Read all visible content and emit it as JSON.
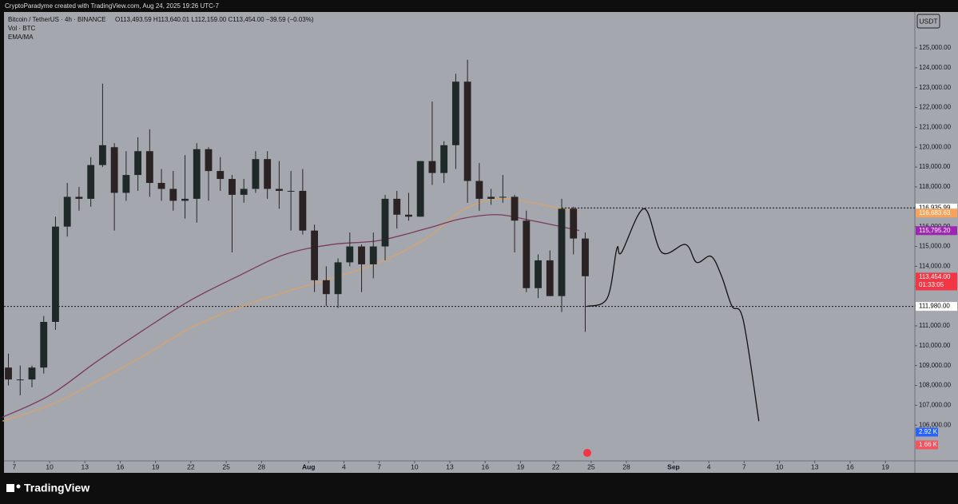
{
  "watermark": "CryptoParadyme created with TradingView.com, Aug 24, 2025 19:26 UTC-7",
  "brand": "TradingView",
  "chart_data": {
    "type": "candlestick",
    "title": "Bitcoin / TetherUS · 4h · BINANCE",
    "ohlc_text": "O113,493.59 H113,640.01 L112,159.00 C113,454.00 −39.59 (−0.03%)",
    "indicators": [
      "Vol · BTC",
      "EMA/MA"
    ],
    "currency": "USDT",
    "up_color": "#1f2a28",
    "down_color": "#2b2224",
    "x": [
      "2025-07-06",
      "2025-07-07",
      "2025-07-08",
      "2025-07-09",
      "2025-07-10",
      "2025-07-11",
      "2025-07-12",
      "2025-07-13",
      "2025-07-14",
      "2025-07-15",
      "2025-07-16",
      "2025-07-17",
      "2025-07-18",
      "2025-07-19",
      "2025-07-20",
      "2025-07-21",
      "2025-07-22",
      "2025-07-23",
      "2025-07-24",
      "2025-07-25",
      "2025-07-26",
      "2025-07-27",
      "2025-07-28",
      "2025-07-29",
      "2025-07-30",
      "2025-07-31",
      "2025-08-01",
      "2025-08-02",
      "2025-08-03",
      "2025-08-04",
      "2025-08-05",
      "2025-08-06",
      "2025-08-07",
      "2025-08-08",
      "2025-08-09",
      "2025-08-10",
      "2025-08-11",
      "2025-08-12",
      "2025-08-13",
      "2025-08-14",
      "2025-08-15",
      "2025-08-16",
      "2025-08-17",
      "2025-08-18",
      "2025-08-19",
      "2025-08-20",
      "2025-08-21",
      "2025-08-22",
      "2025-08-23",
      "2025-08-24"
    ],
    "open": [
      108900,
      108300,
      108300,
      108900,
      111200,
      116000,
      117500,
      117400,
      119100,
      120000,
      117700,
      118600,
      119800,
      118200,
      117900,
      117300,
      117400,
      119900,
      118800,
      118400,
      117600,
      117900,
      119400,
      117900,
      117800,
      117800,
      115800,
      113300,
      112600,
      114200,
      115000,
      114100,
      115000,
      117400,
      116600,
      116500,
      119300,
      118700,
      120100,
      123300,
      118300,
      117400,
      117500,
      117500,
      116300,
      112900,
      114300,
      112500,
      116900,
      115400
    ],
    "high": [
      109600,
      109000,
      109000,
      111500,
      116500,
      118200,
      118000,
      119500,
      123200,
      120200,
      119800,
      120500,
      120900,
      118900,
      118800,
      119600,
      120200,
      120000,
      119500,
      118600,
      118400,
      119800,
      119800,
      119300,
      118800,
      118900,
      116100,
      114000,
      114400,
      115700,
      115100,
      115700,
      117600,
      117800,
      117700,
      119300,
      122300,
      120300,
      123700,
      124400,
      119200,
      117900,
      118600,
      117600,
      116800,
      114600,
      114800,
      117400,
      117000,
      115700
    ],
    "low": [
      108000,
      107500,
      107900,
      108600,
      110800,
      115500,
      116800,
      117000,
      119000,
      115800,
      117300,
      117800,
      117500,
      117300,
      116800,
      116400,
      116200,
      117300,
      117800,
      114700,
      117200,
      117700,
      117400,
      116900,
      115800,
      115600,
      112700,
      112000,
      111900,
      114000,
      112700,
      113400,
      114300,
      115900,
      116300,
      116500,
      118100,
      118200,
      118900,
      117200,
      116800,
      117100,
      117200,
      114700,
      112700,
      112400,
      112500,
      111700,
      114600,
      110700
    ],
    "close": [
      108300,
      108300,
      108900,
      111200,
      116000,
      117500,
      117400,
      119100,
      120100,
      117700,
      118600,
      119800,
      118200,
      117900,
      117300,
      117400,
      119900,
      118800,
      118400,
      117600,
      117900,
      119400,
      117900,
      117800,
      117800,
      115800,
      113300,
      112600,
      114200,
      115000,
      114100,
      115000,
      117400,
      116600,
      116500,
      119300,
      118700,
      120100,
      123300,
      118300,
      117400,
      117500,
      117500,
      116300,
      112900,
      114300,
      112500,
      116900,
      115400,
      113500
    ],
    "ema": {
      "color": "#d9a26a",
      "x": [
        "2025-07-06",
        "2025-07-10",
        "2025-07-14",
        "2025-07-18",
        "2025-07-22",
        "2025-07-26",
        "2025-07-30",
        "2025-08-03",
        "2025-08-07",
        "2025-08-11",
        "2025-08-14",
        "2025-08-17",
        "2025-08-20",
        "2025-08-24"
      ],
      "values": [
        106200,
        107000,
        108200,
        109500,
        110900,
        111900,
        112700,
        113400,
        114200,
        115400,
        116800,
        117400,
        117200,
        116700
      ]
    },
    "ma": {
      "color": "#7a3a5e",
      "x": [
        "2025-07-06",
        "2025-07-10",
        "2025-07-14",
        "2025-07-18",
        "2025-07-22",
        "2025-07-26",
        "2025-07-30",
        "2025-08-03",
        "2025-08-07",
        "2025-08-11",
        "2025-08-14",
        "2025-08-17",
        "2025-08-20",
        "2025-08-24"
      ],
      "values": [
        106400,
        107500,
        109200,
        110800,
        112300,
        113500,
        114600,
        115100,
        115300,
        115900,
        116400,
        116600,
        116300,
        115800
      ]
    },
    "projection": {
      "color": "#111111",
      "x": [
        "2025-08-24T16:00",
        "2025-08-26T09:00",
        "2025-08-27T04:30",
        "2025-08-27T14:00",
        "2025-08-29T12:00",
        "2025-08-31T00:00",
        "2025-09-02T00:30",
        "2025-09-02T23:00",
        "2025-09-04T04:30",
        "2025-09-05T02:00",
        "2025-09-05T23:00",
        "2025-09-06T22:00",
        "2025-09-08T06:00"
      ],
      "values": [
        111980,
        112400,
        114900,
        114700,
        116900,
        114700,
        115100,
        114200,
        114500,
        113500,
        112000,
        111300,
        106200
      ]
    },
    "level_lines": [
      {
        "value": 116935.99,
        "from": "2025-08-22T12:00"
      },
      {
        "value": 111980
      }
    ],
    "price_labels": [
      {
        "value": 116935.99,
        "label": "116,935.99",
        "color": "#ffffff",
        "text_color": "#000000"
      },
      {
        "value": 116683.63,
        "label": "116,683.63",
        "color": "#f7a35c",
        "text_color": "#ffffff"
      },
      {
        "value": 115795.2,
        "label": "115,795.20",
        "color": "#9c27b0",
        "text_color": "#ffffff"
      },
      {
        "value": 113454,
        "label": "113,454.00",
        "sub": "01:33:05",
        "color": "#f23645",
        "text_color": "#ffffff"
      },
      {
        "value": 111980,
        "label": "111,980.00",
        "color": "#ffffff",
        "text_color": "#000000"
      }
    ],
    "volume_labels": [
      {
        "label": "2.92 K",
        "color": "#2962ff"
      },
      {
        "label": "1.66 K",
        "color": "#f7525f"
      }
    ],
    "xlim": [
      "2025-07-06T03:00",
      "2025-09-21T12:00"
    ],
    "ylim": [
      104200,
      126810
    ],
    "yticks": [
      {
        "value": 106000,
        "label": "106,000.00"
      },
      {
        "value": 107000,
        "label": "107,000.00"
      },
      {
        "value": 108000,
        "label": "108,000.00"
      },
      {
        "value": 109000,
        "label": "109,000.00"
      },
      {
        "value": 110000,
        "label": "110,000.00"
      },
      {
        "value": 111000,
        "label": "111,000.00"
      },
      {
        "value": 112000,
        "label": "112,000.00"
      },
      {
        "value": 113000,
        "label": "113,000.00"
      },
      {
        "value": 114000,
        "label": "114,000.00"
      },
      {
        "value": 115000,
        "label": "115,000.00"
      },
      {
        "value": 116000,
        "label": "116,000.00"
      },
      {
        "value": 117000,
        "label": "117,000.00"
      },
      {
        "value": 118000,
        "label": "118,000.00"
      },
      {
        "value": 119000,
        "label": "119,000.00"
      },
      {
        "value": 120000,
        "label": "120,000.00"
      },
      {
        "value": 121000,
        "label": "121,000.00"
      },
      {
        "value": 122000,
        "label": "122,000.00"
      },
      {
        "value": 123000,
        "label": "123,000.00"
      },
      {
        "value": 124000,
        "label": "124,000.00"
      },
      {
        "value": 125000,
        "label": "125,000.00"
      }
    ],
    "xticks": [
      {
        "value": "2025-07-07",
        "label": "7"
      },
      {
        "value": "2025-07-10",
        "label": "10"
      },
      {
        "value": "2025-07-13",
        "label": "13"
      },
      {
        "value": "2025-07-16",
        "label": "16"
      },
      {
        "value": "2025-07-19",
        "label": "19"
      },
      {
        "value": "2025-07-22",
        "label": "22"
      },
      {
        "value": "2025-07-25",
        "label": "25"
      },
      {
        "value": "2025-07-28",
        "label": "28"
      },
      {
        "value": "2025-08-01",
        "label": "Aug"
      },
      {
        "value": "2025-08-04",
        "label": "4"
      },
      {
        "value": "2025-08-07",
        "label": "7"
      },
      {
        "value": "2025-08-10",
        "label": "10"
      },
      {
        "value": "2025-08-13",
        "label": "13"
      },
      {
        "value": "2025-08-16",
        "label": "16"
      },
      {
        "value": "2025-08-19",
        "label": "19"
      },
      {
        "value": "2025-08-22",
        "label": "22"
      },
      {
        "value": "2025-08-25",
        "label": "25"
      },
      {
        "value": "2025-08-28",
        "label": "28"
      },
      {
        "value": "2025-09-01",
        "label": "Sep"
      },
      {
        "value": "2025-09-04",
        "label": "4"
      },
      {
        "value": "2025-09-07",
        "label": "7"
      },
      {
        "value": "2025-09-10",
        "label": "10"
      },
      {
        "value": "2025-09-13",
        "label": "13"
      },
      {
        "value": "2025-09-16",
        "label": "16"
      },
      {
        "value": "2025-09-19",
        "label": "19"
      }
    ]
  }
}
